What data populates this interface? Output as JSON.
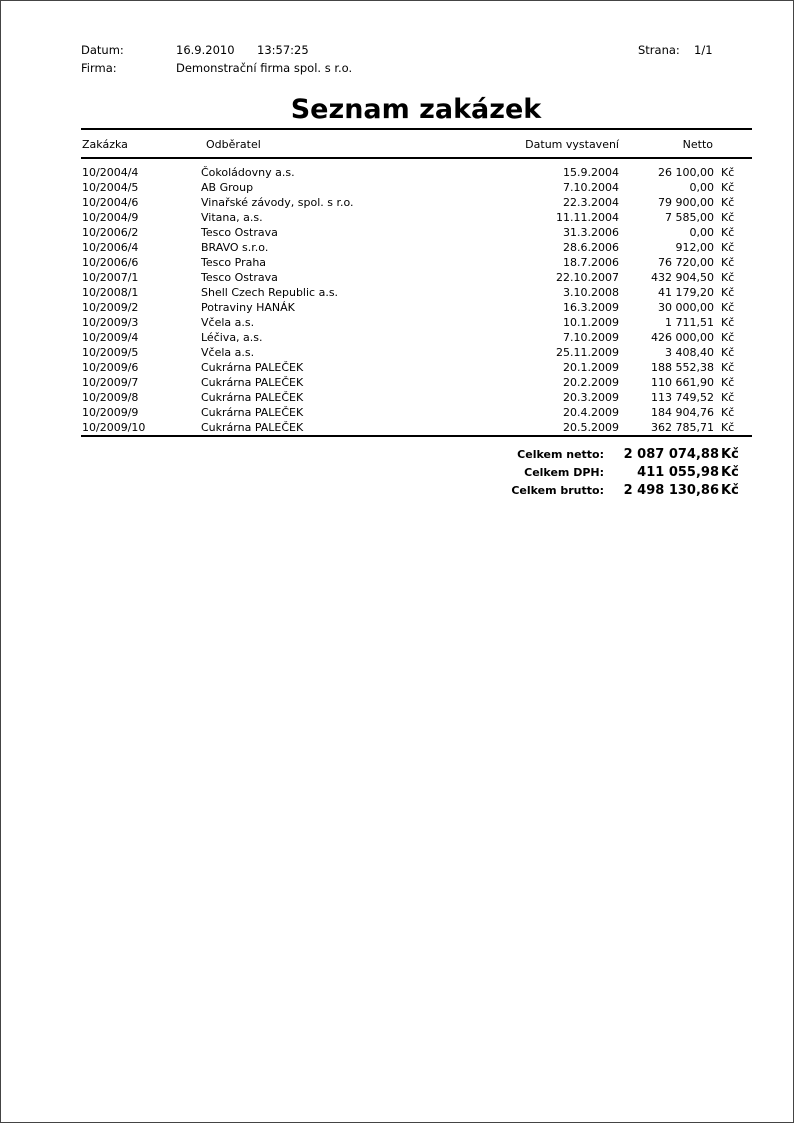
{
  "header": {
    "date_label": "Datum:",
    "date_value": "16.9.2010",
    "time_value": "13:57:25",
    "page_label": "Strana:",
    "page_value": "1/1",
    "company_label": "Firma:",
    "company_value": "Demonstrační firma spol. s r.o."
  },
  "title": "Seznam zakázek",
  "columns": {
    "code": "Zakázka",
    "customer": "Odběratel",
    "date": "Datum vystavení",
    "amount": "Netto"
  },
  "rows": [
    {
      "code": "10/2004/4",
      "customer": "Čokoládovny a.s.",
      "date": "15.9.2004",
      "amount": "26 100,00",
      "currency": "Kč"
    },
    {
      "code": "10/2004/5",
      "customer": "AB Group",
      "date": "7.10.2004",
      "amount": "0,00",
      "currency": "Kč"
    },
    {
      "code": "10/2004/6",
      "customer": "Vinařské závody, spol. s r.o.",
      "date": "22.3.2004",
      "amount": "79 900,00",
      "currency": "Kč"
    },
    {
      "code": "10/2004/9",
      "customer": "Vitana, a.s.",
      "date": "11.11.2004",
      "amount": "7 585,00",
      "currency": "Kč"
    },
    {
      "code": "10/2006/2",
      "customer": "Tesco Ostrava",
      "date": "31.3.2006",
      "amount": "0,00",
      "currency": "Kč"
    },
    {
      "code": "10/2006/4",
      "customer": "BRAVO s.r.o.",
      "date": "28.6.2006",
      "amount": "912,00",
      "currency": "Kč"
    },
    {
      "code": "10/2006/6",
      "customer": "Tesco Praha",
      "date": "18.7.2006",
      "amount": "76 720,00",
      "currency": "Kč"
    },
    {
      "code": "10/2007/1",
      "customer": "Tesco Ostrava",
      "date": "22.10.2007",
      "amount": "432 904,50",
      "currency": "Kč"
    },
    {
      "code": "10/2008/1",
      "customer": "Shell Czech Republic a.s.",
      "date": "3.10.2008",
      "amount": "41 179,20",
      "currency": "Kč"
    },
    {
      "code": "10/2009/2",
      "customer": "Potraviny HANÁK",
      "date": "16.3.2009",
      "amount": "30 000,00",
      "currency": "Kč"
    },
    {
      "code": "10/2009/3",
      "customer": "Včela a.s.",
      "date": "10.1.2009",
      "amount": "1 711,51",
      "currency": "Kč"
    },
    {
      "code": "10/2009/4",
      "customer": "Léčiva, a.s.",
      "date": "7.10.2009",
      "amount": "426 000,00",
      "currency": "Kč"
    },
    {
      "code": "10/2009/5",
      "customer": "Včela a.s.",
      "date": "25.11.2009",
      "amount": "3 408,40",
      "currency": "Kč"
    },
    {
      "code": "10/2009/6",
      "customer": "Cukrárna PALEČEK",
      "date": "20.1.2009",
      "amount": "188 552,38",
      "currency": "Kč"
    },
    {
      "code": "10/2009/7",
      "customer": "Cukrárna PALEČEK",
      "date": "20.2.2009",
      "amount": "110 661,90",
      "currency": "Kč"
    },
    {
      "code": "10/2009/8",
      "customer": "Cukrárna PALEČEK",
      "date": "20.3.2009",
      "amount": "113 749,52",
      "currency": "Kč"
    },
    {
      "code": "10/2009/9",
      "customer": "Cukrárna PALEČEK",
      "date": "20.4.2009",
      "amount": "184 904,76",
      "currency": "Kč"
    },
    {
      "code": "10/2009/10",
      "customer": "Cukrárna PALEČEK",
      "date": "20.5.2009",
      "amount": "362 785,71",
      "currency": "Kč"
    }
  ],
  "totals": [
    {
      "label": "Celkem netto:",
      "value": "2 087 074,88",
      "currency": "Kč"
    },
    {
      "label": "Celkem DPH:",
      "value": "411 055,98",
      "currency": "Kč"
    },
    {
      "label": "Celkem brutto:",
      "value": "2 498 130,86",
      "currency": "Kč"
    }
  ]
}
